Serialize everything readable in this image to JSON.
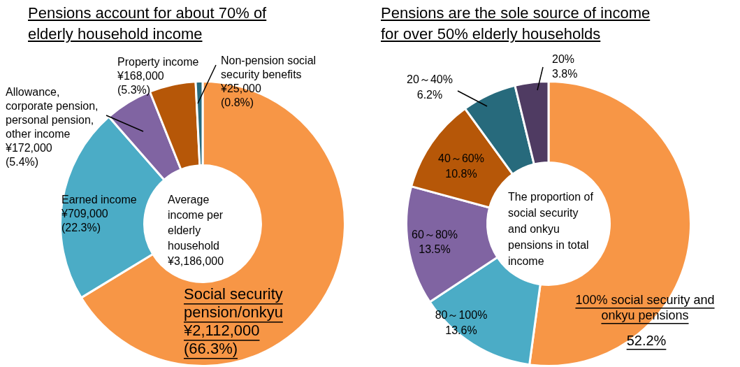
{
  "chart_data": [
    {
      "type": "donut",
      "title": "Pensions account for about 70% of elderly household income",
      "categories": [
        "Social security\npension/onkyu",
        "Earned income",
        "Allowance,\ncorporate pension,\npersonal pension,\nother income",
        "Property income",
        "Non-pension social\nsecurity benefits"
      ],
      "values": [
        2112000,
        709000,
        172000,
        168000,
        25000
      ],
      "value_labels": [
        "¥2,112,000\n(66.3%)",
        "¥709,000\n(22.3%)",
        "¥172,000\n(5.4%)",
        "¥168,000\n(5.3%)",
        "¥25,000\n(0.8%)"
      ],
      "colors": [
        "#f79646",
        "#4bacc6",
        "#8064a2",
        "#b65708",
        "#276a7c"
      ],
      "annotations": [
        "Average\nincome per\nelderly\nhousehold\n¥3,186,000"
      ]
    },
    {
      "type": "donut",
      "title": "Pensions are the sole source of income for over 50% elderly households",
      "categories": [
        "100% social security and\nonkyu pensions",
        "80～100%",
        "60～80%",
        "40～60%",
        "20～40%",
        "20%"
      ],
      "values": [
        52.2,
        13.6,
        13.5,
        10.8,
        6.2,
        3.8
      ],
      "value_labels": [
        "52.2%",
        "13.6%",
        "13.5%",
        "10.8%",
        "6.2%",
        "3.8%"
      ],
      "colors": [
        "#f79646",
        "#4bacc6",
        "#8064a2",
        "#b65708",
        "#276a7c",
        "#4f3b62"
      ],
      "annotations": [
        "The proportion of\nsocial security\nand onkyu\npensions in total\nincome"
      ]
    }
  ]
}
